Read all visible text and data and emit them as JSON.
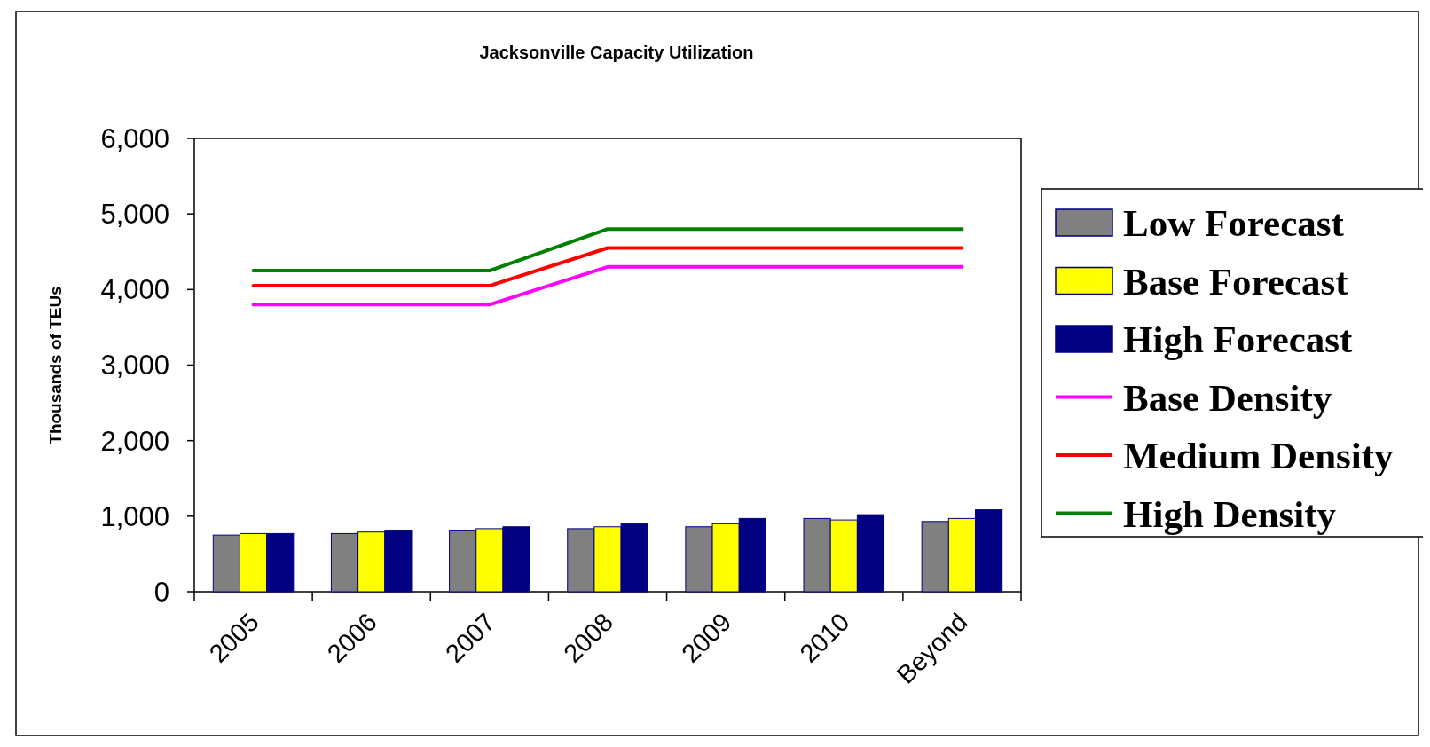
{
  "chart_data": {
    "type": "bar",
    "title": "Jacksonville Capacity Utilization",
    "ylabel": "Thousands of TEUs",
    "categories": [
      "2005",
      "2006",
      "2007",
      "2008",
      "2009",
      "2010",
      "Beyond"
    ],
    "series": [
      {
        "name": "Low Forecast",
        "color": "#808080",
        "values": [
          750,
          770,
          815,
          835,
          860,
          970,
          930
        ]
      },
      {
        "name": "Base Forecast",
        "color": "#ffff00",
        "values": [
          770,
          790,
          835,
          860,
          900,
          950,
          970
        ]
      },
      {
        "name": "High Forecast",
        "color": "#000080",
        "values": [
          770,
          815,
          860,
          900,
          970,
          1020,
          1085
        ]
      },
      {
        "name": "Base Density",
        "type": "line",
        "color": "#ff00ff",
        "values": [
          3800,
          3800,
          3800,
          4300,
          4300,
          4300,
          4300
        ]
      },
      {
        "name": "Medium Density",
        "type": "line",
        "color": "#ff0000",
        "values": [
          4050,
          4050,
          4050,
          4550,
          4550,
          4550,
          4550
        ]
      },
      {
        "name": "High Density",
        "type": "line",
        "color": "#008000",
        "values": [
          4250,
          4250,
          4250,
          4800,
          4800,
          4800,
          4800
        ]
      }
    ],
    "ylim": [
      0,
      6000
    ],
    "yticks": [
      {
        "value": 0,
        "label": "0"
      },
      {
        "value": 1000,
        "label": "1,000"
      },
      {
        "value": 2000,
        "label": "2,000"
      },
      {
        "value": 3000,
        "label": "3,000"
      },
      {
        "value": 4000,
        "label": "4,000"
      },
      {
        "value": 5000,
        "label": "5,000"
      },
      {
        "value": 6000,
        "label": "6,000"
      }
    ],
    "grid": false,
    "legend": "right",
    "marker": "none"
  }
}
